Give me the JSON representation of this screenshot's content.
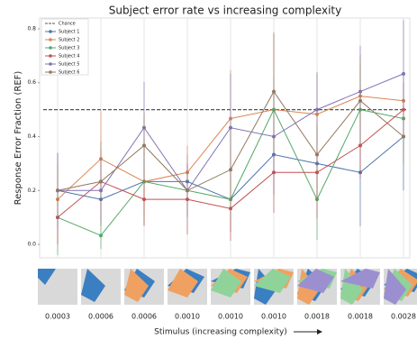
{
  "chart_data": {
    "type": "line",
    "title": "Subject error rate vs increasing complexity",
    "x_label": "Stimulus (increasing complexity)",
    "y_label": "Response Error Fraction (REF)",
    "categories": [
      "0.0003",
      "0.0006",
      "0.0006",
      "0.0010",
      "0.0010",
      "0.0010",
      "0.0018",
      "0.0018",
      "0.0028"
    ],
    "ylim": [
      -0.05,
      0.84
    ],
    "yticks": [
      {
        "value": 0,
        "label": "0.0"
      },
      {
        "value": 0.2,
        "label": "0.2"
      },
      {
        "value": 0.4,
        "label": "0.4"
      },
      {
        "value": 0.6,
        "label": "0.6"
      },
      {
        "value": 0.8,
        "label": "0.8"
      }
    ],
    "grid": true,
    "legend": "upper left",
    "chance": {
      "label": "Chance",
      "value": 0.5,
      "color": "#555555"
    },
    "series": [
      {
        "name": "Subject 1",
        "color": "#4c72b0",
        "values": [
          0.2,
          0.167,
          0.233,
          0.233,
          0.167,
          0.333,
          0.3,
          0.267,
          0.4
        ],
        "errors": [
          0.14,
          0.1,
          0.12,
          0.1,
          0.12,
          0.15,
          0.14,
          0.2,
          0.2
        ]
      },
      {
        "name": "Subject 2",
        "color": "#dd8452",
        "values": [
          0.167,
          0.317,
          0.233,
          0.267,
          0.467,
          0.5,
          0.483,
          0.55,
          0.533
        ],
        "errors": [
          0.1,
          0.18,
          0.12,
          0.1,
          0.18,
          0.28,
          0.15,
          0.12,
          0.1
        ]
      },
      {
        "name": "Subject 3",
        "color": "#55a868",
        "values": [
          0.1,
          0.033,
          0.233,
          0.2,
          0.167,
          0.5,
          0.167,
          0.5,
          0.467
        ],
        "errors": [
          0.14,
          0.05,
          0.16,
          0.1,
          0.12,
          0.12,
          0.15,
          0.15,
          0.12
        ]
      },
      {
        "name": "Subject 4",
        "color": "#c44e52",
        "values": [
          0.1,
          0.233,
          0.167,
          0.167,
          0.133,
          0.267,
          0.267,
          0.367,
          0.5
        ],
        "errors": [
          0.1,
          0.12,
          0.1,
          0.13,
          0.12,
          0.15,
          0.17,
          0.12,
          0.1
        ]
      },
      {
        "name": "Subject 5",
        "color": "#8172b3",
        "values": [
          0.2,
          0.2,
          0.433,
          0.2,
          0.433,
          0.4,
          0.5,
          0.567,
          0.633
        ],
        "errors": [
          0.14,
          0.12,
          0.17,
          0.1,
          0.2,
          0.18,
          0.14,
          0.17,
          0.2
        ]
      },
      {
        "name": "Subject 6",
        "color": "#937860",
        "values": [
          0.2,
          0.233,
          0.367,
          0.2,
          0.277,
          0.567,
          0.333,
          0.533,
          0.4
        ],
        "errors": [
          0.1,
          0.15,
          0.12,
          0.08,
          0.15,
          0.22,
          0.12,
          0.17,
          0.1
        ]
      }
    ]
  }
}
